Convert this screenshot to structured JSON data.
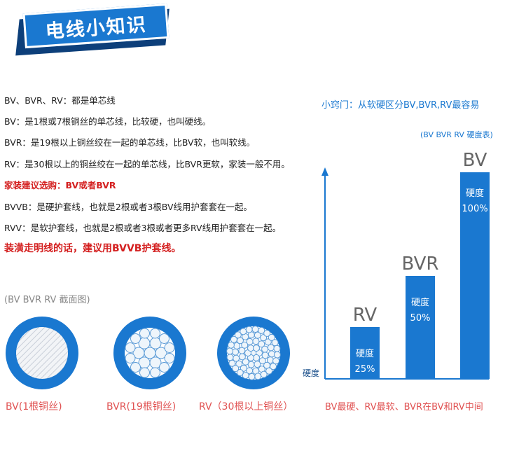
{
  "banner": {
    "title": "电线小知识"
  },
  "lines": [
    "BV、BVR、RV：都是单芯线",
    "BV：是1根或7根铜丝的单芯线，比较硬，也叫硬线。",
    "BVR：是19根以上铜丝绞在一起的单芯线，比BV软，也叫软线。",
    "RV：是30根以上的铜丝绞在一起的单芯线，比BVR更软，家装一般不用。",
    "家装建议选购：BV或者BVR",
    "BVVB：是硬护套线，也就是2根或者3根BV线用护套套在一起。",
    "RVV：是软护套线，也就是2根或者3根或者更多RV线用护套套在一起。",
    "装潢走明线的话，建议用BVVB护套线。"
  ],
  "cross_section": {
    "title": "(BV BVR RV 截面图)",
    "captions": [
      "BV(1根铜丝)",
      "BVR(19根铜丝)",
      "RV（30根以上铜丝）"
    ]
  },
  "chart": {
    "tip": "小窍门：从软硬区分BV,BVR,RV最容易",
    "subtitle": "(BV BVR RV 硬度表)",
    "ylabel": "硬度",
    "footer": "BV最硬、RV最软、BVR在BV和RV中间",
    "accent": "#1a78d0"
  },
  "chart_data": {
    "type": "bar",
    "categories": [
      "RV",
      "BVR",
      "BV"
    ],
    "series": [
      {
        "name": "硬度",
        "values": [
          25,
          50,
          100
        ]
      }
    ],
    "value_labels": [
      "25%",
      "50%",
      "100%"
    ],
    "bar_text": "硬度",
    "ylabel": "硬度",
    "ylim": [
      0,
      100
    ]
  }
}
